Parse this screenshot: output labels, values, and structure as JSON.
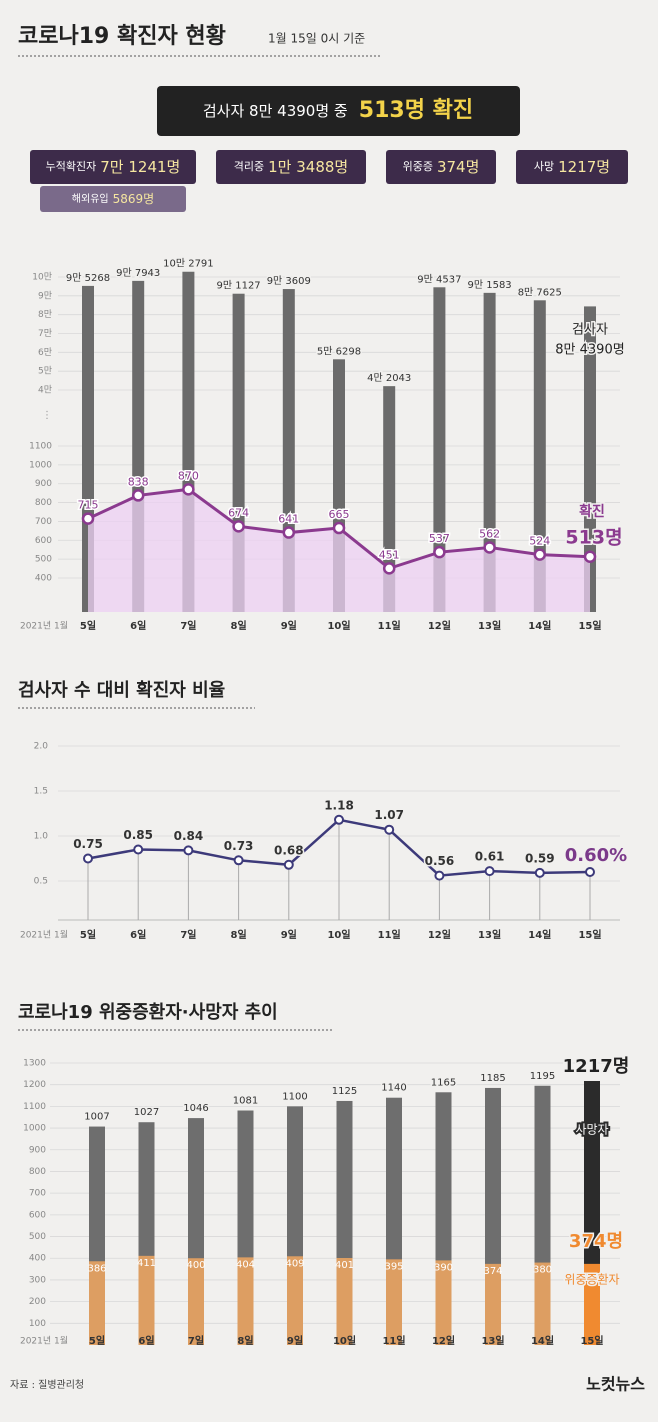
{
  "header": {
    "title": "코로나19 확진자 현황",
    "subtitle": "1월 15일 0시 기준",
    "summary": {
      "prefix": "검사자 8만 4390명 중",
      "highlight": "513명 확진"
    },
    "stats": [
      {
        "label": "누적확진자",
        "value": "7만 1241명"
      },
      {
        "label": "격리중",
        "value": "1만 3488명"
      },
      {
        "label": "위중증",
        "value": "374명"
      },
      {
        "label": "사망",
        "value": "1217명"
      }
    ],
    "sub_stat": {
      "label": "해외유입",
      "value": "5869명"
    }
  },
  "chart_data": [
    {
      "type": "bar-line",
      "x_prefix": "2021년 1월",
      "categories": [
        "5일",
        "6일",
        "7일",
        "8일",
        "9일",
        "10일",
        "11일",
        "12일",
        "13일",
        "14일",
        "15일"
      ],
      "series": [
        {
          "name": "검사자",
          "axis": "y2",
          "color": "#6b6b6b",
          "values": [
            95268,
            97943,
            102791,
            91127,
            93609,
            56298,
            42043,
            94537,
            91583,
            87625,
            84390
          ],
          "value_labels": [
            "9만 5268",
            "9만 7943",
            "10만 2791",
            "9만 1127",
            "9만 3609",
            "5만 6298",
            "4만 2043",
            "9만 4537",
            "9만 1583",
            "8만 7625",
            "8만 4390명"
          ]
        },
        {
          "name": "확진",
          "color": "#8b3a8f",
          "fill": "#ecd0f3",
          "values": [
            715,
            838,
            870,
            674,
            641,
            665,
            451,
            537,
            562,
            524,
            513
          ],
          "value_labels": [
            "715",
            "838",
            "870",
            "674",
            "641",
            "665",
            "451",
            "537",
            "562",
            "524",
            "513명"
          ]
        }
      ],
      "ylim": [
        400,
        1100
      ],
      "yticks": [
        400,
        500,
        600,
        700,
        800,
        900,
        1000,
        1100
      ],
      "y2lim": [
        40000,
        100000
      ],
      "y2ticks": [
        {
          "value": 40000,
          "label": "4만"
        },
        {
          "value": 50000,
          "label": "5만"
        },
        {
          "value": 60000,
          "label": "6만"
        },
        {
          "value": 70000,
          "label": "7만"
        },
        {
          "value": 80000,
          "label": "8만"
        },
        {
          "value": 90000,
          "label": "9만"
        },
        {
          "value": 100000,
          "label": "10만"
        }
      ],
      "grid": true
    },
    {
      "type": "line",
      "title": "검사자 수 대비 확진자 비율",
      "x_prefix": "2021년 1월",
      "categories": [
        "5일",
        "6일",
        "7일",
        "8일",
        "9일",
        "10일",
        "11일",
        "12일",
        "13일",
        "14일",
        "15일"
      ],
      "values": [
        0.75,
        0.85,
        0.84,
        0.73,
        0.68,
        1.18,
        1.07,
        0.56,
        0.61,
        0.59,
        0.6
      ],
      "value_labels": [
        "0.75",
        "0.85",
        "0.84",
        "0.73",
        "0.68",
        "1.18",
        "1.07",
        "0.56",
        "0.61",
        "0.59",
        "0.60%"
      ],
      "color": "#3d3a7a",
      "highlight_color": "#7b3a8a",
      "ylim": [
        0.1,
        2.0
      ],
      "yticks": [
        0.5,
        {
          "value": 1,
          "label": "1.0"
        },
        1.5,
        {
          "value": 2,
          "label": "2.0"
        }
      ],
      "grid": true
    },
    {
      "type": "bar",
      "title": "코로나19 위중증환자·사망자 추이",
      "x_prefix": "2021년 1월",
      "categories": [
        "5일",
        "6일",
        "7일",
        "8일",
        "9일",
        "10일",
        "11일",
        "12일",
        "13일",
        "14일",
        "15일"
      ],
      "series": [
        {
          "name": "사망자",
          "color": "#6e6e6e",
          "highlight_color": "#2b2b2b",
          "values": [
            1007,
            1027,
            1046,
            1081,
            1100,
            1125,
            1140,
            1165,
            1185,
            1195,
            1217
          ],
          "value_labels": [
            "1007",
            "1027",
            "1046",
            "1081",
            "1100",
            "1125",
            "1140",
            "1165",
            "1185",
            "1195",
            "1217명"
          ]
        },
        {
          "name": "위중증환자",
          "color": "#dd9e62",
          "highlight_color": "#f08a30",
          "values": [
            386,
            411,
            400,
            404,
            409,
            401,
            395,
            390,
            374,
            380,
            374
          ],
          "value_labels": [
            "386",
            "411",
            "400",
            "404",
            "409",
            "401",
            "395",
            "390",
            "374",
            "380",
            "374명"
          ]
        }
      ],
      "ylim": [
        0,
        1300
      ],
      "yticks": [
        100,
        200,
        300,
        400,
        500,
        600,
        700,
        800,
        900,
        1000,
        1100,
        1200,
        1300
      ],
      "grid": true
    }
  ],
  "footer": {
    "source": "자료 : 질병관리청",
    "logo": "노컷뉴스"
  }
}
